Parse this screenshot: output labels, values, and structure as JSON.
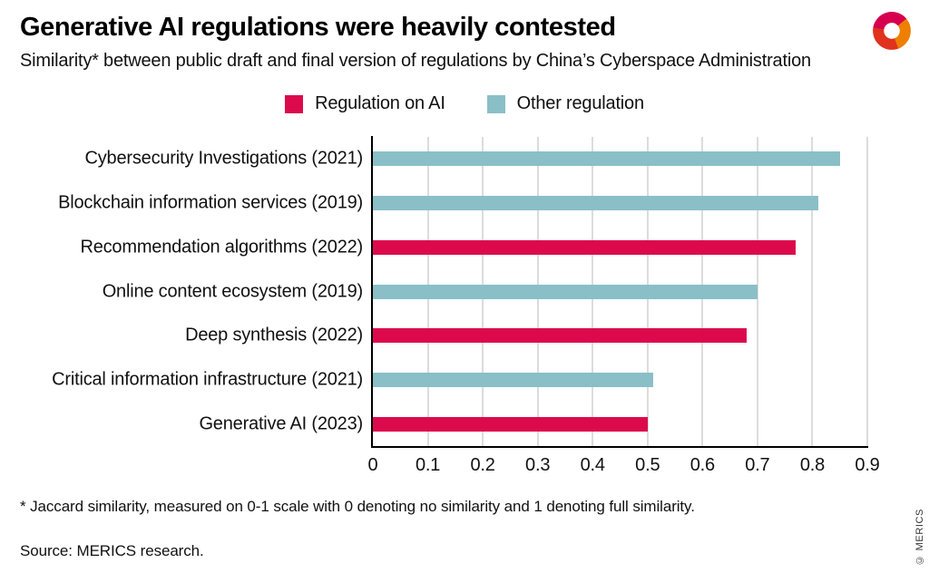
{
  "header": {
    "title": "Generative AI regulations were heavily contested",
    "subtitle": "Similarity* between public draft and final version of regulations by China’s Cyberspace Administration"
  },
  "logo": {
    "name": "merics-logo",
    "colors": {
      "magenta": "#d6004f",
      "orange": "#ee7f00",
      "red": "#e0321e"
    }
  },
  "legend": {
    "items": [
      {
        "key": "ai",
        "label": "Regulation on AI",
        "color": "#dc0a4d"
      },
      {
        "key": "other",
        "label": "Other regulation",
        "color": "#8abfc7"
      }
    ]
  },
  "chart_data": {
    "type": "bar",
    "orientation": "horizontal",
    "title": "Generative AI regulations were heavily contested",
    "subtitle": "Similarity* between public draft and final version of regulations by China’s Cyberspace Administration",
    "categories": [
      "Cybersecurity Investigations (2021)",
      "Blockchain information services (2019)",
      "Recommendation algorithms (2022)",
      "Online content ecosystem (2019)",
      "Deep synthesis (2022)",
      "Critical information infrastructure (2021)",
      "Generative AI (2023)"
    ],
    "values": [
      0.85,
      0.81,
      0.77,
      0.7,
      0.68,
      0.51,
      0.5
    ],
    "series_key": [
      "other",
      "other",
      "ai",
      "other",
      "ai",
      "other",
      "ai"
    ],
    "series": [
      {
        "name": "Regulation on AI",
        "color": "#dc0a4d"
      },
      {
        "name": "Other regulation",
        "color": "#8abfc7"
      }
    ],
    "x_ticks": [
      "0",
      "0.1",
      "0.2",
      "0.3",
      "0.4",
      "0.5",
      "0.6",
      "0.7",
      "0.8",
      "0.9"
    ],
    "xlim": [
      0,
      0.9
    ],
    "grid": true,
    "legend_position": "top-center",
    "gridline_color": "#dcdcdc",
    "axis_color": "#000000"
  },
  "footer": {
    "footnote": "* Jaccard similarity, measured on 0-1 scale with 0 denoting no similarity and 1 denoting full similarity.",
    "source": "Source: MERICS research.",
    "copyright": "© MERICS"
  }
}
